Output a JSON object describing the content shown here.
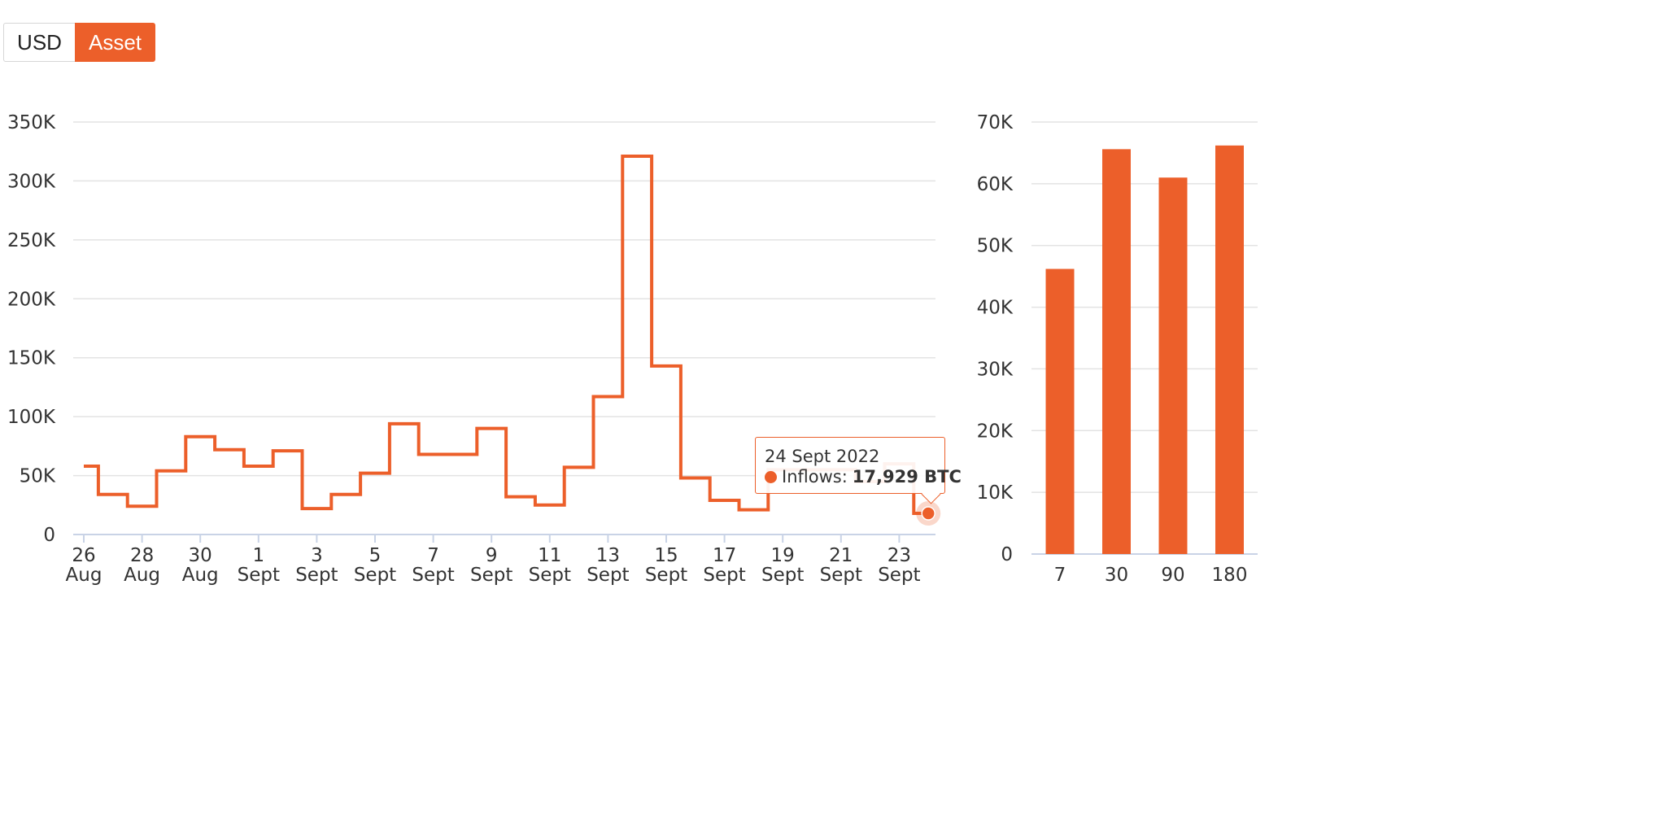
{
  "toggle": {
    "usd_label": "USD",
    "asset_label": "Asset",
    "active": "Asset"
  },
  "colors": {
    "accent": "#ec5f2a",
    "grid": "#e3e3e3",
    "axis": "#c9d3e6"
  },
  "tooltip": {
    "date": "24 Sept 2022",
    "series_label": "Inflows:",
    "value": "17,929 BTC"
  },
  "chart_data": [
    {
      "type": "line",
      "step": true,
      "x": [
        "2022-08-26",
        "2022-08-27",
        "2022-08-28",
        "2022-08-29",
        "2022-08-30",
        "2022-08-31",
        "2022-09-01",
        "2022-09-02",
        "2022-09-03",
        "2022-09-04",
        "2022-09-05",
        "2022-09-06",
        "2022-09-07",
        "2022-09-08",
        "2022-09-09",
        "2022-09-10",
        "2022-09-11",
        "2022-09-12",
        "2022-09-13",
        "2022-09-14",
        "2022-09-15",
        "2022-09-16",
        "2022-09-17",
        "2022-09-18",
        "2022-09-19",
        "2022-09-20",
        "2022-09-21",
        "2022-09-22",
        "2022-09-23",
        "2022-09-24"
      ],
      "series": [
        {
          "name": "Inflows",
          "values": [
            58000,
            34000,
            24000,
            54000,
            83000,
            72000,
            58000,
            71000,
            22000,
            34000,
            52000,
            94000,
            68000,
            68000,
            90000,
            32000,
            25000,
            57000,
            117000,
            321000,
            143000,
            48000,
            29000,
            21000,
            55000,
            55000,
            55000,
            45000,
            60000,
            17929
          ]
        }
      ],
      "x_ticks": [
        {
          "day": "26",
          "month": "Aug"
        },
        {
          "day": "28",
          "month": "Aug"
        },
        {
          "day": "30",
          "month": "Aug"
        },
        {
          "day": "1",
          "month": "Sept"
        },
        {
          "day": "3",
          "month": "Sept"
        },
        {
          "day": "5",
          "month": "Sept"
        },
        {
          "day": "7",
          "month": "Sept"
        },
        {
          "day": "9",
          "month": "Sept"
        },
        {
          "day": "11",
          "month": "Sept"
        },
        {
          "day": "13",
          "month": "Sept"
        },
        {
          "day": "15",
          "month": "Sept"
        },
        {
          "day": "17",
          "month": "Sept"
        },
        {
          "day": "19",
          "month": "Sept"
        },
        {
          "day": "21",
          "month": "Sept"
        },
        {
          "day": "23",
          "month": "Sept"
        }
      ],
      "y_ticks": [
        "0",
        "50K",
        "100K",
        "150K",
        "200K",
        "250K",
        "300K",
        "350K"
      ],
      "ylim": [
        0,
        350000
      ],
      "grid": true,
      "highlight": {
        "x": "2022-09-24",
        "value": 17929
      }
    },
    {
      "type": "bar",
      "categories": [
        "7",
        "30",
        "90",
        "180"
      ],
      "values": [
        46200,
        65600,
        61000,
        66200
      ],
      "y_ticks": [
        "0",
        "10K",
        "20K",
        "30K",
        "40K",
        "50K",
        "60K",
        "70K"
      ],
      "ylim": [
        0,
        70000
      ],
      "grid": true
    }
  ]
}
